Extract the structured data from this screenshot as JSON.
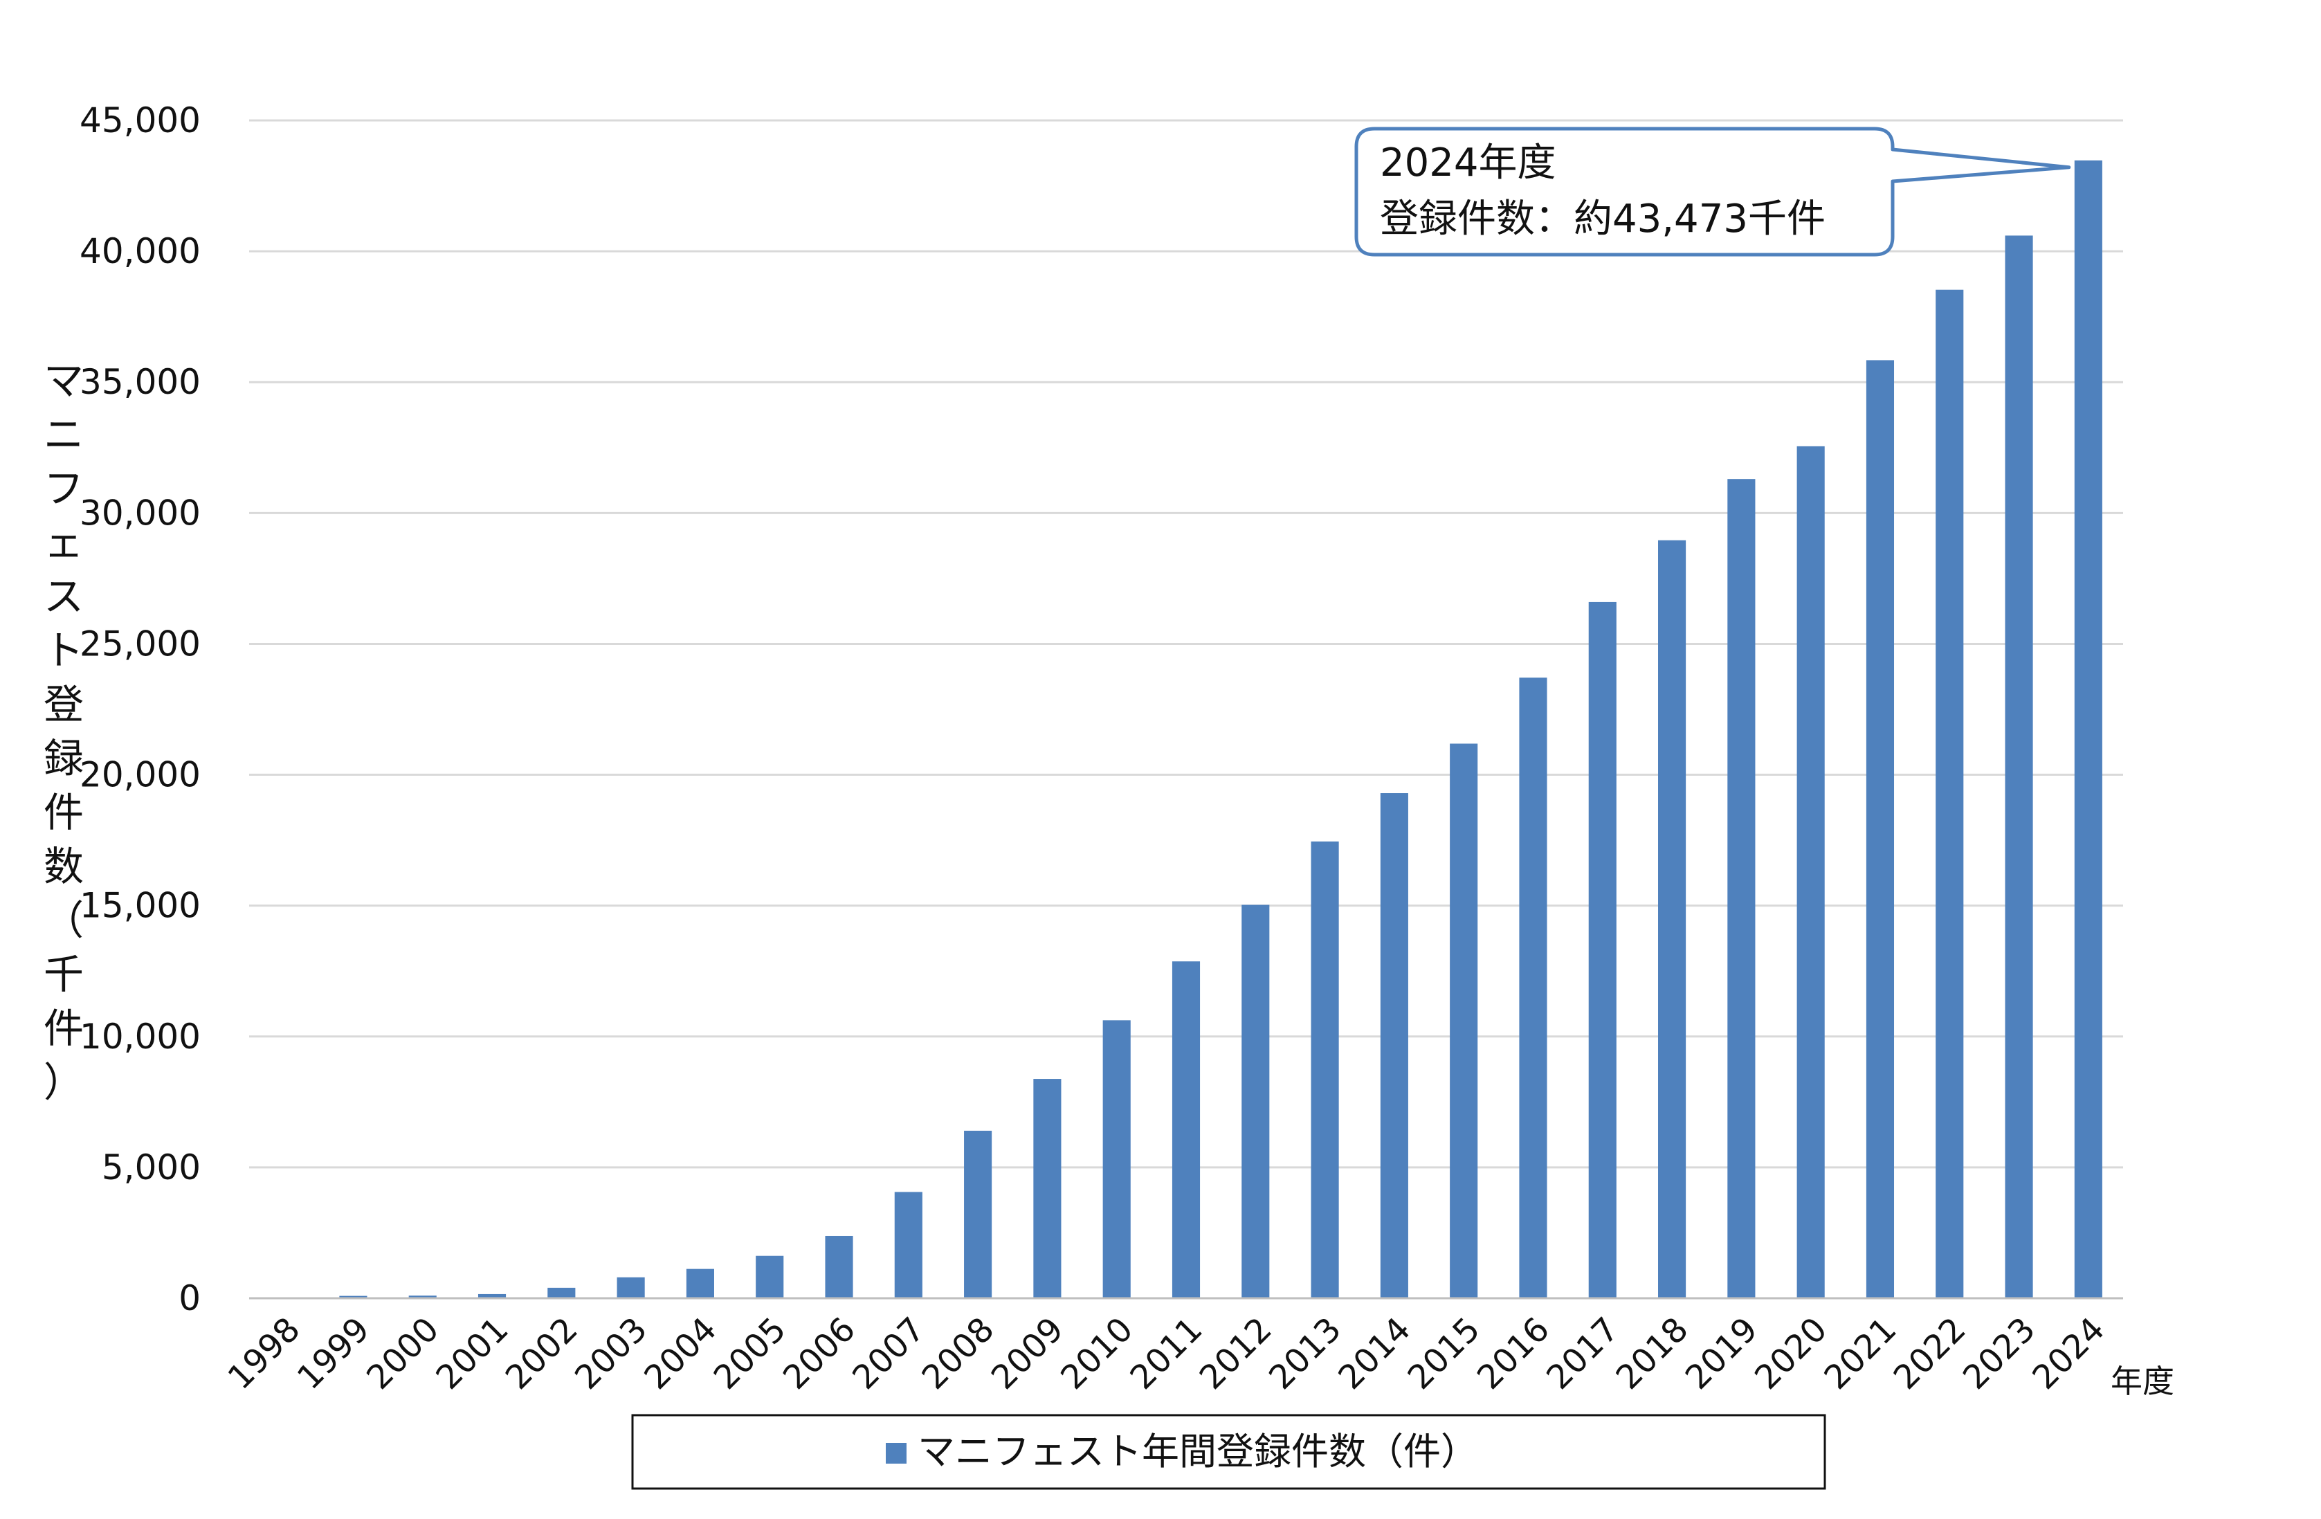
{
  "chart_data": {
    "type": "bar",
    "categories": [
      "1998",
      "1999",
      "2000",
      "2001",
      "2002",
      "2003",
      "2004",
      "2005",
      "2006",
      "2007",
      "2008",
      "2009",
      "2010",
      "2011",
      "2012",
      "2013",
      "2014",
      "2015",
      "2016",
      "2017",
      "2018",
      "2019",
      "2020",
      "2021",
      "2022",
      "2023",
      "2024"
    ],
    "series": [
      {
        "name": "マニフェスト年間登録件数（件）",
        "color": "#4f81bd",
        "values": [
          0,
          90,
          100,
          160,
          400,
          800,
          1120,
          1620,
          2380,
          4060,
          6400,
          8380,
          10620,
          12870,
          15030,
          17450,
          19300,
          21190,
          23710,
          26600,
          28960,
          31300,
          32550,
          35840,
          38530,
          40600,
          43473
        ]
      }
    ],
    "y_ticks": [
      "0",
      "5,000",
      "10,000",
      "15,000",
      "20,000",
      "25,000",
      "30,000",
      "35,000",
      "40,000",
      "45,000"
    ],
    "ylim": [
      0,
      45000
    ],
    "ylabel": "マニフェスト登録件数（千件）",
    "xlabel": "年度",
    "grid": true,
    "legend_position": "bottom-center",
    "legend_label": "マニフェスト年間登録件数（件）",
    "callout": {
      "line1": "2024年度",
      "line2": "登録件数：約43,473千件",
      "target_category": "2024"
    }
  }
}
